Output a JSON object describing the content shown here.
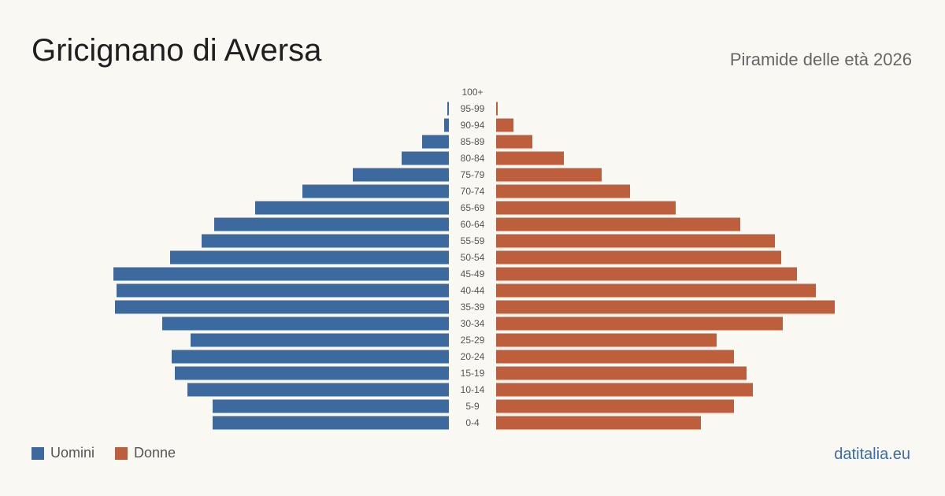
{
  "header": {
    "title": "Gricignano di Aversa",
    "subtitle": "Piramide delle età 2026"
  },
  "legend": {
    "men_label": "Uomini",
    "women_label": "Donne"
  },
  "brand": "datitalia.eu",
  "colors": {
    "men": "#3d6a9e",
    "women": "#bd5f3c",
    "background": "#faf8f3"
  },
  "chart_data": {
    "type": "bar",
    "orientation": "horizontal-pyramid",
    "categories": [
      "100+",
      "95-99",
      "90-94",
      "85-89",
      "80-84",
      "75-79",
      "70-74",
      "65-69",
      "60-64",
      "55-59",
      "50-54",
      "45-49",
      "40-44",
      "35-39",
      "30-34",
      "25-29",
      "20-24",
      "15-19",
      "10-14",
      "5-9",
      "0-4"
    ],
    "series": [
      {
        "name": "Uomini",
        "values": [
          0,
          1,
          3,
          17,
          30,
          61,
          93,
          123,
          149,
          157,
          177,
          213,
          211,
          212,
          182,
          164,
          176,
          174,
          166,
          150,
          150
        ]
      },
      {
        "name": "Donne",
        "values": [
          0,
          1,
          11,
          23,
          43,
          67,
          85,
          114,
          155,
          177,
          181,
          191,
          203,
          215,
          182,
          140,
          151,
          159,
          163,
          151,
          130
        ]
      }
    ],
    "xlim": [
      0,
      215
    ],
    "grid": false,
    "legend_position": "bottom-left"
  }
}
